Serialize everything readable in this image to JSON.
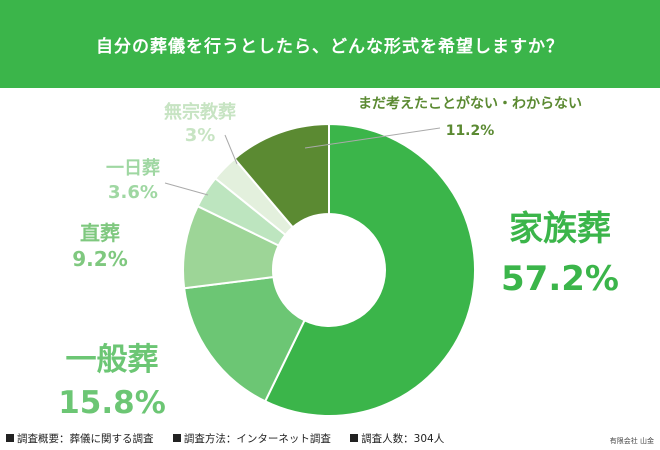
{
  "chart_data": {
    "type": "pie",
    "title": "自分の葬儀を行うとしたら、どんな形式を希望しますか？",
    "unit": "%",
    "categories": [
      "家族葬",
      "一般葬",
      "直葬",
      "一日葬",
      "無宗教葬",
      "まだ考えたことがない・わからない"
    ],
    "values": [
      57.2,
      15.8,
      9.2,
      3.6,
      3.0,
      11.2
    ],
    "value_labels": [
      "57.2%",
      "15.8%",
      "9.2%",
      "3.6%",
      "3%",
      "11.2%"
    ],
    "colors": [
      "#3bb54a",
      "#6cc674",
      "#9dd597",
      "#bde5bf",
      "#e3f0dd",
      "#5b8a32"
    ],
    "label_colors": [
      "#3bb54a",
      "#6cc674",
      "#7fc87f",
      "#9fd7a2",
      "#c7e4c3",
      "#5b8a32"
    ],
    "style": "donut"
  },
  "footer": {
    "notes": [
      "調査概要：葬儀に関する調査",
      "調査方法：インターネット調査",
      "調査人数：304人"
    ],
    "credit": "有限会社 山金"
  }
}
